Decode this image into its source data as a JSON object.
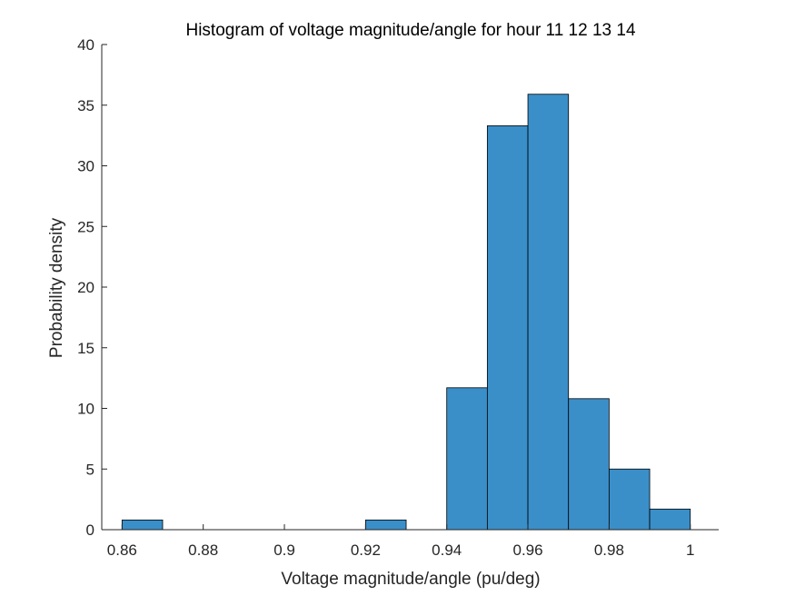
{
  "chart_data": {
    "type": "bar",
    "title": "Histogram of voltage magnitude/angle for hour 11  12  13  14",
    "xlabel": "Voltage magnitude/angle (pu/deg)",
    "ylabel": "Probability density",
    "xlim": [
      0.855,
      1.007
    ],
    "ylim": [
      0,
      40
    ],
    "xticks": [
      "0.86",
      "0.88",
      "0.9",
      "0.92",
      "0.94",
      "0.96",
      "0.98",
      "1"
    ],
    "xtick_values": [
      0.86,
      0.88,
      0.9,
      0.92,
      0.94,
      0.96,
      0.98,
      1.0
    ],
    "yticks": [
      "0",
      "5",
      "10",
      "15",
      "20",
      "25",
      "30",
      "35",
      "40"
    ],
    "ytick_values": [
      0,
      5,
      10,
      15,
      20,
      25,
      30,
      35,
      40
    ],
    "bin_width": 0.01,
    "bins": [
      {
        "start": 0.86,
        "end": 0.87,
        "value": 0.8
      },
      {
        "start": 0.92,
        "end": 0.93,
        "value": 0.8
      },
      {
        "start": 0.94,
        "end": 0.95,
        "value": 11.7
      },
      {
        "start": 0.95,
        "end": 0.96,
        "value": 33.3
      },
      {
        "start": 0.96,
        "end": 0.97,
        "value": 35.9
      },
      {
        "start": 0.97,
        "end": 0.98,
        "value": 10.8
      },
      {
        "start": 0.98,
        "end": 0.99,
        "value": 5.0
      },
      {
        "start": 0.99,
        "end": 1.0,
        "value": 1.7
      }
    ],
    "bar_color": "#3a8fc9",
    "edge_color": "#000000",
    "grid": false,
    "legend": "none"
  }
}
